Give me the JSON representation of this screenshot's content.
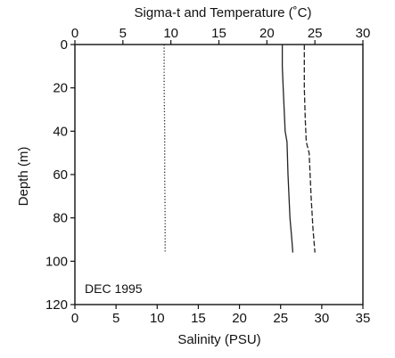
{
  "chart_data": {
    "type": "line",
    "top_axis": {
      "label": "Sigma-t and Temperature (˚C)",
      "range": [
        0,
        30
      ],
      "ticks": [
        "0",
        "5",
        "10",
        "15",
        "20",
        "25",
        "30"
      ]
    },
    "bottom_axis": {
      "label": "Salinity (PSU)",
      "range": [
        0,
        35
      ],
      "ticks": [
        "0",
        "5",
        "10",
        "15",
        "20",
        "25",
        "30",
        "35"
      ]
    },
    "y_axis": {
      "label": "Depth (m)",
      "range": [
        0,
        120
      ],
      "inverted": true,
      "ticks": [
        "0",
        "20",
        "40",
        "60",
        "80",
        "100",
        "120"
      ]
    },
    "grid": false,
    "annotation": "DEC 1995",
    "series": [
      {
        "axis": "top",
        "style": "dotted",
        "points": [
          [
            9.3,
            0
          ],
          [
            9.3,
            20
          ],
          [
            9.35,
            40
          ],
          [
            9.35,
            60
          ],
          [
            9.4,
            80
          ],
          [
            9.4,
            96
          ]
        ]
      },
      {
        "axis": "top",
        "style": "solid",
        "points": [
          [
            21.6,
            0
          ],
          [
            21.6,
            10
          ],
          [
            21.7,
            20
          ],
          [
            21.8,
            30
          ],
          [
            21.9,
            40
          ],
          [
            22.1,
            45
          ],
          [
            22.2,
            60
          ],
          [
            22.4,
            80
          ],
          [
            22.6,
            90
          ],
          [
            22.7,
            96
          ]
        ]
      },
      {
        "axis": "top",
        "style": "dashed",
        "points": [
          [
            23.9,
            0
          ],
          [
            23.9,
            20
          ],
          [
            24.0,
            35
          ],
          [
            24.1,
            45
          ],
          [
            24.4,
            50
          ],
          [
            24.6,
            70
          ],
          [
            24.8,
            85
          ],
          [
            25.0,
            96
          ]
        ]
      }
    ]
  }
}
